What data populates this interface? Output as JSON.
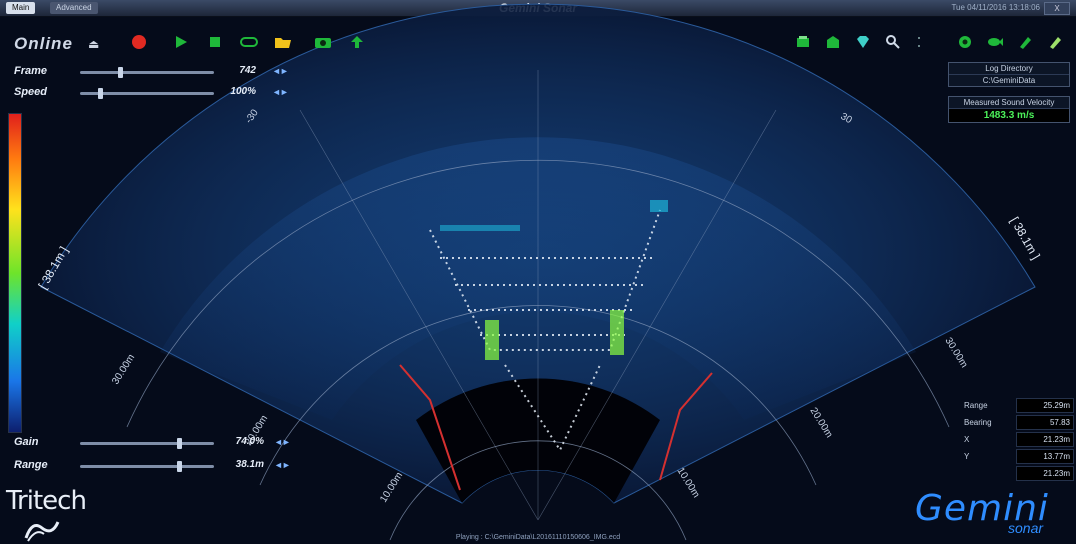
{
  "window": {
    "title": "Gemini Sonar",
    "clock": "Tue 04/11/2016 13:18:06",
    "tabs": [
      "Main",
      "Advanced"
    ],
    "win_btn": "X"
  },
  "toolbar": {
    "status_label": "Online"
  },
  "playback": {
    "frame_label": "Frame",
    "frame_value": "742",
    "frame_level": 0.3,
    "speed_label": "Speed",
    "speed_value": "100%",
    "speed_level": 0.15,
    "arrows": "◄►"
  },
  "gain_range": {
    "gain_label": "Gain",
    "gain_value": "74.0%",
    "gain_level": 0.74,
    "range_label": "Range",
    "range_value": "38.1m",
    "range_level": 0.74
  },
  "fan": {
    "angle_labels": [
      "-30",
      "30"
    ],
    "range_edge_labels": [
      "[ 38.1m ]",
      "[ 38.1m ]"
    ],
    "range_rings": [
      "10.00m",
      "20.00m",
      "30.00m",
      "10.00m",
      "20.00m",
      "30.00m"
    ]
  },
  "right_panel": {
    "log_dir_label": "Log Directory",
    "log_dir_value": "C:\\GeminiData",
    "sound_label": "Measured Sound Velocity",
    "sound_value": "1483.3 m/s",
    "readouts": [
      {
        "key": "Range",
        "value": "25.29m"
      },
      {
        "key": "Bearing",
        "value": "57.83"
      },
      {
        "key": "X",
        "value": "21.23m"
      },
      {
        "key": "Y",
        "value": "13.77m"
      },
      {
        "key": "",
        "value": "21.23m"
      }
    ]
  },
  "branding": {
    "company": "Tritech",
    "product": "Gemini",
    "product_sub": "sonar"
  },
  "status_bar": {
    "text": "Playing : C:\\GeminiData\\L20161110150606_IMG.ecd"
  },
  "colors": {
    "accent": "#2f8dff",
    "velocity_text": "#4cf25a",
    "record": "#e12a22",
    "play": "#1fb83a"
  }
}
